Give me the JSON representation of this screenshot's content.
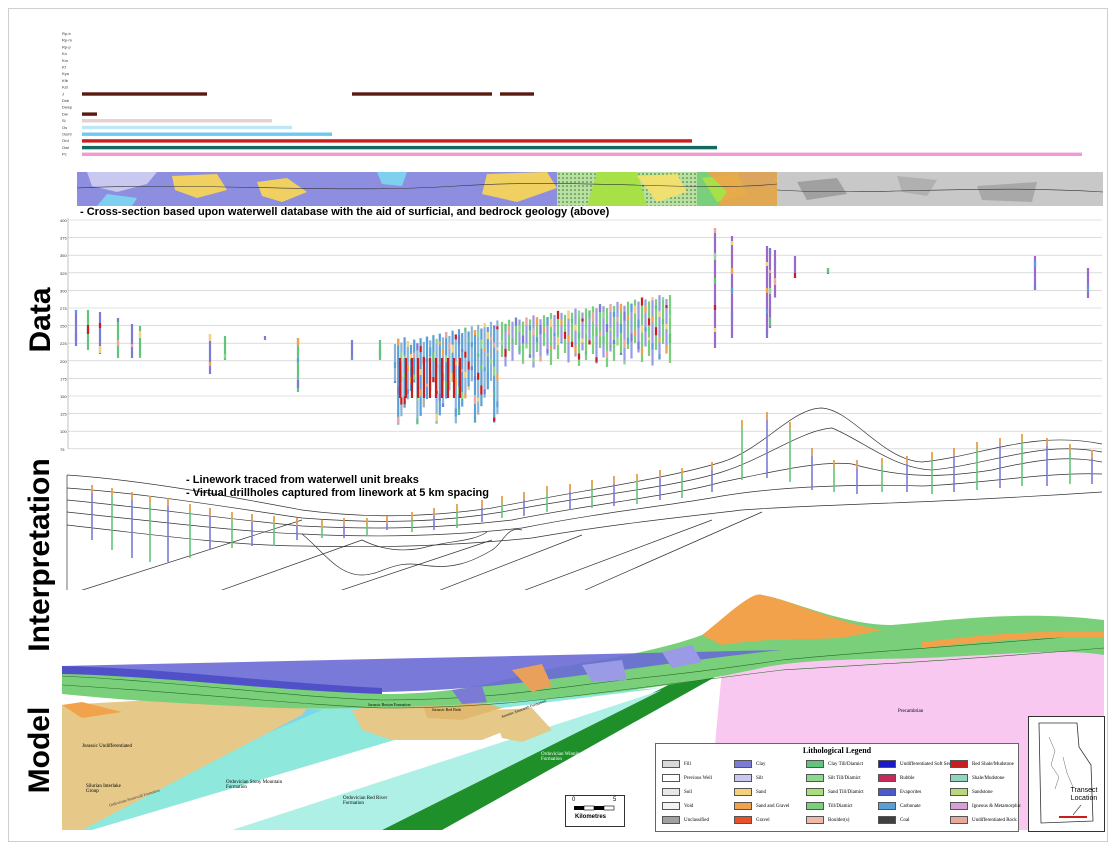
{
  "captions": {
    "data_caption": "- Cross-section based upon waterwell database with the aid of surficial, and bedrock geology (above)",
    "interp_line1": "- Linework traced from waterwell unit breaks",
    "interp_line2": "- Virtual drillholes captured from linework at 5 km spacing"
  },
  "side_labels": {
    "data": "Data",
    "interpretation": "Interpretation",
    "model": "Model"
  },
  "top_units": [
    {
      "code": "Rp-b",
      "color": "#5a1a10",
      "bars": []
    },
    {
      "code": "Rp-m",
      "color": "#5a1a10",
      "bars": []
    },
    {
      "code": "Rp-p",
      "color": "#5a1a10",
      "bars": []
    },
    {
      "code": "Kn",
      "color": "#5a1a10",
      "bars": []
    },
    {
      "code": "Km",
      "color": "#5a1a10",
      "bars": []
    },
    {
      "code": "Kf",
      "color": "#5a1a10",
      "bars": []
    },
    {
      "code": "Kya",
      "color": "#5a1a10",
      "bars": []
    },
    {
      "code": "Kfb",
      "color": "#5a1a10",
      "bars": []
    },
    {
      "code": "Kst",
      "color": "#5a1a10",
      "bars": []
    },
    {
      "code": "J",
      "color": "#5a1a10",
      "bars": [
        [
          0,
          0.125
        ],
        [
          0.27,
          0.41
        ],
        [
          0.418,
          0.452
        ]
      ]
    },
    {
      "code": "Dsb",
      "color": "#5a1a10",
      "bars": []
    },
    {
      "code": "Dwsp",
      "color": "#5a1a10",
      "bars": []
    },
    {
      "code": "Dw",
      "color": "#5a1a10",
      "bars": [
        [
          0,
          0.015
        ]
      ]
    },
    {
      "code": "Si",
      "color": "#e6d0d0",
      "bars": [
        [
          0,
          0.19
        ]
      ]
    },
    {
      "code": "Os",
      "color": "#bfe6f4",
      "bars": [
        [
          0,
          0.21
        ]
      ]
    },
    {
      "code": "Osmt",
      "color": "#6fc8ef",
      "bars": [
        [
          0,
          0.25
        ]
      ]
    },
    {
      "code": "Ord",
      "color": "#cc1e1e",
      "bars": [
        [
          0,
          0.61
        ]
      ]
    },
    {
      "code": "Owi",
      "color": "#0e6b5e",
      "bars": [
        [
          0,
          0.635
        ]
      ]
    },
    {
      "code": "Pc",
      "color": "#f29ad6",
      "bars": [
        [
          0,
          1.0
        ]
      ]
    }
  ],
  "data_axis": {
    "ticks": [
      "400",
      "375",
      "350",
      "325",
      "300",
      "275",
      "250",
      "225",
      "200",
      "175",
      "150",
      "125",
      "100",
      "75"
    ]
  },
  "model_labels": {
    "jurassic": "Jurassic Undifferentiated",
    "silurian": "Silurian Interlake Group",
    "ord_stony": "Ordovician Stony Mountain Formation",
    "ord_red": "Ordovician Red River Formation",
    "ord_wpg": "Ordovician Winnipeg Formation",
    "jur_reston": "Jurassic Reston Formation",
    "jur_red": "Jurassic Red Beds",
    "jur_amaranth": "Jurassic Amaranth Formation",
    "precambrian": "Precambrian",
    "silurian_sub": "Ordovician Stonewall Formation"
  },
  "legend": {
    "title": "Lithological Legend",
    "items": [
      {
        "label": "Fill",
        "color": "#d9d9d9"
      },
      {
        "label": "Previous Well",
        "color": "#ffffff"
      },
      {
        "label": "Soil",
        "color": "#e8e8e8"
      },
      {
        "label": "Void",
        "color": "#f2f2f2"
      },
      {
        "label": "Unclassified",
        "color": "#a0a0a0"
      },
      {
        "label": "Clay",
        "color": "#7b7bd6"
      },
      {
        "label": "Silt",
        "color": "#c8c8f0"
      },
      {
        "label": "Sand",
        "color": "#f2d27a"
      },
      {
        "label": "Sand and Gravel",
        "color": "#f2a24a"
      },
      {
        "label": "Gravel",
        "color": "#e8502a"
      },
      {
        "label": "Clay Till/Diamict",
        "color": "#62c47a"
      },
      {
        "label": "Silt Till/Diamict",
        "color": "#8ed88e"
      },
      {
        "label": "Sand Till/Diamict",
        "color": "#a7e07a"
      },
      {
        "label": "Till/Diamict",
        "color": "#7ad07a"
      },
      {
        "label": "Boulder(s)",
        "color": "#f0b8a8"
      },
      {
        "label": "Undifferentiated Soft Sediment",
        "color": "#1a1ac8"
      },
      {
        "label": "Rubble",
        "color": "#c8285a"
      },
      {
        "label": "Evaporites",
        "color": "#4a5ac8"
      },
      {
        "label": "Carbonate",
        "color": "#5aa0d6"
      },
      {
        "label": "Coal",
        "color": "#404040"
      },
      {
        "label": "Red Shale/Mudstone",
        "color": "#c81e1e"
      },
      {
        "label": "Shale/Mudstone",
        "color": "#8ed6c0"
      },
      {
        "label": "Sandstone",
        "color": "#b8d87a"
      },
      {
        "label": "Igneous & Metamorphic",
        "color": "#d6a0d6"
      },
      {
        "label": "Undifferentiated Rock",
        "color": "#e8a8a0"
      }
    ]
  },
  "scale": {
    "zero": "0",
    "max": "5",
    "unit": "Kilometres"
  },
  "inset": {
    "label": "Transect Location"
  }
}
